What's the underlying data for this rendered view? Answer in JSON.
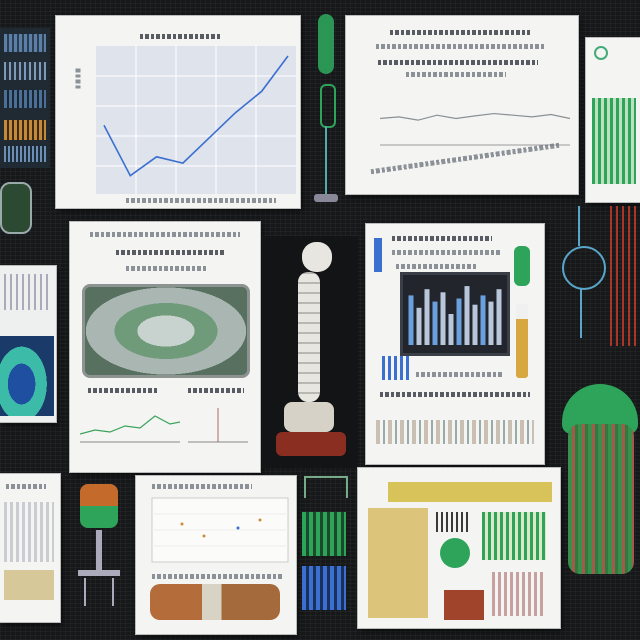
{
  "scene": {
    "background": "#16181a",
    "accent_colors": {
      "line_chart": "#3b6fd0",
      "plant_green": "#2ea35a",
      "specimen_white": "#e8e6e0",
      "yellow_panel": "#d8c25a",
      "red_coral": "#c23a2a"
    }
  },
  "line_chart": {
    "values": [
      0.45,
      0.05,
      0.2,
      0.15,
      0.35,
      0.55,
      0.72,
      1.0
    ]
  },
  "flat_chart": {
    "values": [
      0.5,
      0.55,
      0.45,
      0.6,
      0.5,
      0.58,
      0.65,
      0.6,
      0.55,
      0.62,
      0.5
    ]
  },
  "bar_panel": {
    "values": [
      0.8,
      0.6,
      0.9,
      0.7,
      0.85,
      0.5,
      0.75,
      0.95,
      0.65,
      0.8,
      0.7,
      0.9
    ]
  },
  "icons": [
    "specimen-icon",
    "plant-icon",
    "microscope-icon",
    "lamp-icon",
    "stethoscope-icon"
  ]
}
